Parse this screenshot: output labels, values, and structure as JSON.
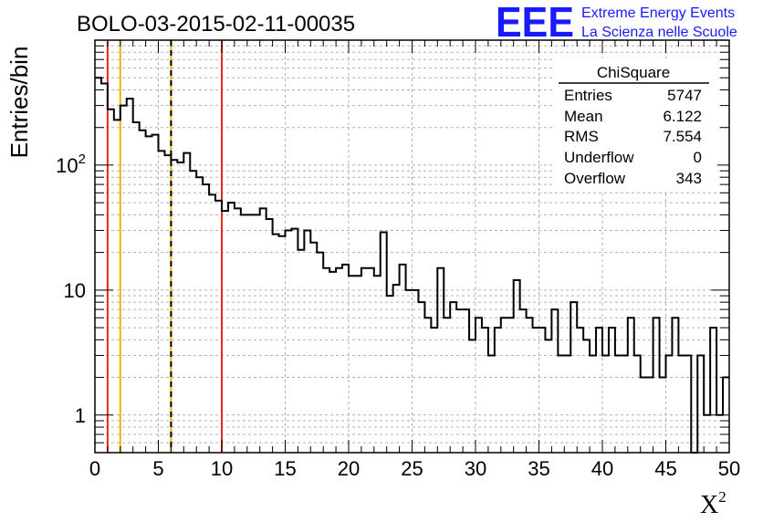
{
  "title": "BOLO-03-2015-02-11-00035",
  "logo": {
    "mark": "EEE",
    "line1": "Extreme Energy Events",
    "line2": "La Scienza nelle Scuole",
    "color": "#1a1aff"
  },
  "stats_box": {
    "title": "ChiSquare",
    "rows": [
      {
        "label": "Entries",
        "value": "5747"
      },
      {
        "label": "Mean",
        "value": "6.122"
      },
      {
        "label": "RMS",
        "value": "7.554"
      },
      {
        "label": "Underflow",
        "value": "0"
      },
      {
        "label": "Overflow",
        "value": "343"
      }
    ]
  },
  "chart_data": {
    "type": "histogram",
    "ylabel": "Entries/bin",
    "xlabel_base": "X",
    "xlabel_sup": "2",
    "xlim": [
      0,
      50
    ],
    "ylim": [
      0.5,
      1000
    ],
    "yscale": "log",
    "grid": true,
    "bin_width": 0.5,
    "x_ticks": [
      0,
      5,
      10,
      15,
      20,
      25,
      30,
      35,
      40,
      45,
      50
    ],
    "y_tick_labels": [
      {
        "value": 1,
        "base": "1",
        "exp": ""
      },
      {
        "value": 10,
        "base": "10",
        "exp": ""
      },
      {
        "value": 100,
        "base": "10",
        "exp": "2"
      }
    ],
    "values": [
      500,
      450,
      280,
      230,
      300,
      340,
      220,
      190,
      170,
      175,
      130,
      120,
      110,
      105,
      125,
      90,
      80,
      70,
      58,
      52,
      43,
      50,
      45,
      40,
      40,
      40,
      45,
      37,
      28,
      27,
      30,
      31,
      21,
      30,
      24,
      20,
      15,
      14,
      15,
      16,
      13,
      13,
      15,
      15,
      13,
      29,
      9,
      11,
      16,
      10,
      10,
      8,
      6,
      5,
      15,
      6,
      8,
      7,
      7,
      4,
      6,
      5,
      3,
      5,
      6,
      6,
      12,
      7,
      6,
      5,
      5,
      4,
      7,
      3,
      3,
      8,
      5,
      4,
      3,
      5,
      3,
      5,
      3,
      3,
      6,
      3,
      2,
      2,
      6,
      2,
      3,
      6,
      3,
      3,
      0,
      3,
      1,
      5,
      1,
      2
    ],
    "vertical_lines": [
      {
        "x": 1,
        "color": "#e8291c",
        "style": "solid"
      },
      {
        "x": 2,
        "color": "#f0b400",
        "style": "solid"
      },
      {
        "x": 6,
        "color": "#f0b400",
        "style": "solid"
      },
      {
        "x": 6,
        "color": "#000000",
        "style": "dashed"
      },
      {
        "x": 10,
        "color": "#e8291c",
        "style": "solid"
      }
    ]
  }
}
